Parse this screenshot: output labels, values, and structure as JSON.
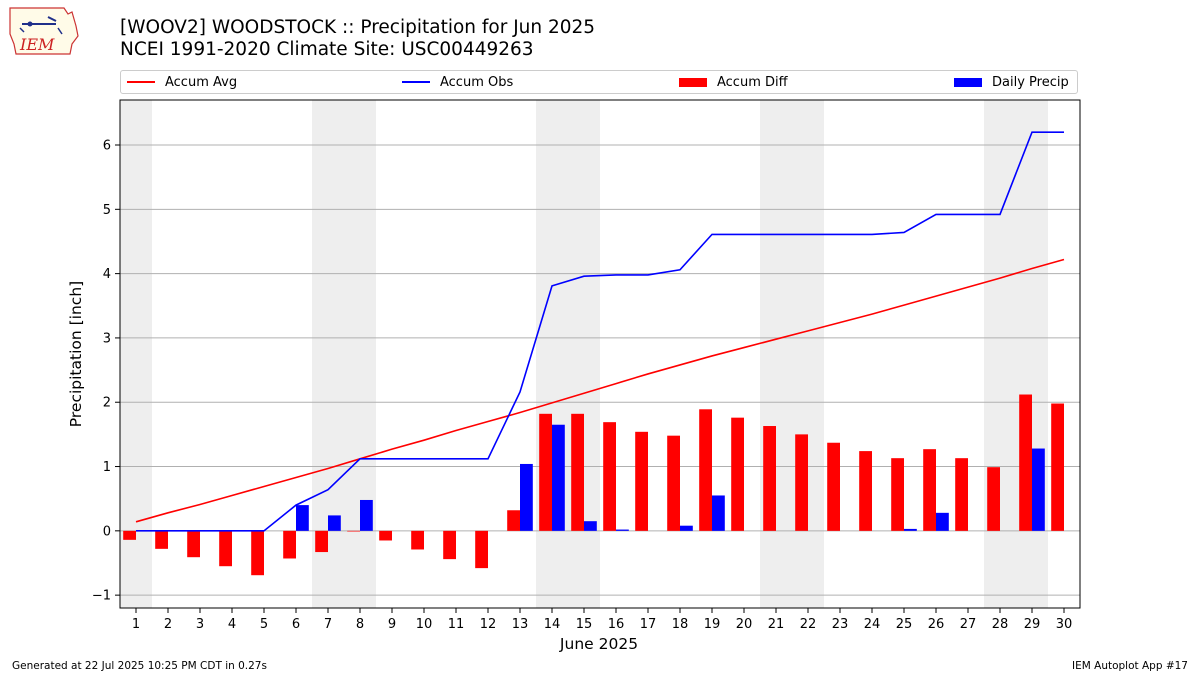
{
  "logo": {
    "text": "IEM"
  },
  "header": {
    "title_line1": "[WOOV2] WOODSTOCK :: Precipitation for Jun 2025",
    "title_line2": "NCEI 1991-2020 Climate Site: USC00449263"
  },
  "legend": {
    "accum_avg": "Accum Avg",
    "accum_obs": "Accum Obs",
    "accum_diff": "Accum Diff",
    "daily_precip": "Daily Precip"
  },
  "colors": {
    "accum_avg": "#ff0000",
    "accum_obs": "#0000ff",
    "accum_diff": "#ff0000",
    "daily_precip": "#0000ff",
    "weekend_shade": "#eeeeee",
    "grid": "#b0b0b0"
  },
  "chart_data": {
    "type": "bar",
    "title": "[WOOV2] WOODSTOCK :: Precipitation for Jun 2025",
    "subtitle": "NCEI 1991-2020 Climate Site: USC00449263",
    "xlabel": "June 2025",
    "ylabel": "Precipitation [inch]",
    "ylim": [
      -1.2,
      6.7
    ],
    "yticks": [
      -1,
      0,
      1,
      2,
      3,
      4,
      5,
      6
    ],
    "grid": "y",
    "legend_position": "top",
    "categories": [
      "1",
      "2",
      "3",
      "4",
      "5",
      "6",
      "7",
      "8",
      "9",
      "10",
      "11",
      "12",
      "13",
      "14",
      "15",
      "16",
      "17",
      "18",
      "19",
      "20",
      "21",
      "22",
      "23",
      "24",
      "25",
      "26",
      "27",
      "28",
      "29",
      "30"
    ],
    "shaded_days": [
      [
        1,
        1
      ],
      [
        7,
        8
      ],
      [
        14,
        15
      ],
      [
        21,
        22
      ],
      [
        28,
        29
      ]
    ],
    "series": [
      {
        "name": "Accum Avg",
        "kind": "line",
        "values": [
          0.14,
          0.28,
          0.41,
          0.55,
          0.69,
          0.83,
          0.97,
          1.12,
          1.27,
          1.41,
          1.56,
          1.7,
          1.84,
          1.99,
          2.14,
          2.29,
          2.44,
          2.58,
          2.72,
          2.85,
          2.98,
          3.11,
          3.24,
          3.37,
          3.51,
          3.65,
          3.79,
          3.93,
          4.08,
          4.22
        ]
      },
      {
        "name": "Accum Obs",
        "kind": "line",
        "values": [
          0.0,
          0.0,
          0.0,
          0.0,
          0.0,
          0.4,
          0.64,
          1.12,
          1.12,
          1.12,
          1.12,
          1.12,
          2.16,
          3.81,
          3.96,
          3.98,
          3.98,
          4.06,
          4.61,
          4.61,
          4.61,
          4.61,
          4.61,
          4.61,
          4.64,
          4.92,
          4.92,
          4.92,
          6.2,
          6.2
        ]
      },
      {
        "name": "Accum Diff",
        "kind": "bar",
        "values": [
          -0.14,
          -0.28,
          -0.41,
          -0.55,
          -0.69,
          -0.43,
          -0.33,
          -0.01,
          -0.15,
          -0.29,
          -0.44,
          -0.58,
          0.32,
          1.82,
          1.82,
          1.69,
          1.54,
          1.48,
          1.89,
          1.76,
          1.63,
          1.5,
          1.37,
          1.24,
          1.13,
          1.27,
          1.13,
          0.99,
          2.12,
          1.98
        ]
      },
      {
        "name": "Daily Precip",
        "kind": "bar",
        "values": [
          0,
          0,
          0,
          0,
          0,
          0.4,
          0.24,
          0.48,
          0,
          0,
          0,
          0,
          1.04,
          1.65,
          0.15,
          0.02,
          0,
          0.08,
          0.55,
          0,
          0,
          0,
          0,
          0,
          0.03,
          0.28,
          0,
          0,
          1.28,
          0
        ]
      }
    ]
  },
  "footer": {
    "generated": "Generated at 22 Jul 2025 10:25 PM CDT in 0.27s",
    "app": "IEM Autoplot App #17"
  }
}
